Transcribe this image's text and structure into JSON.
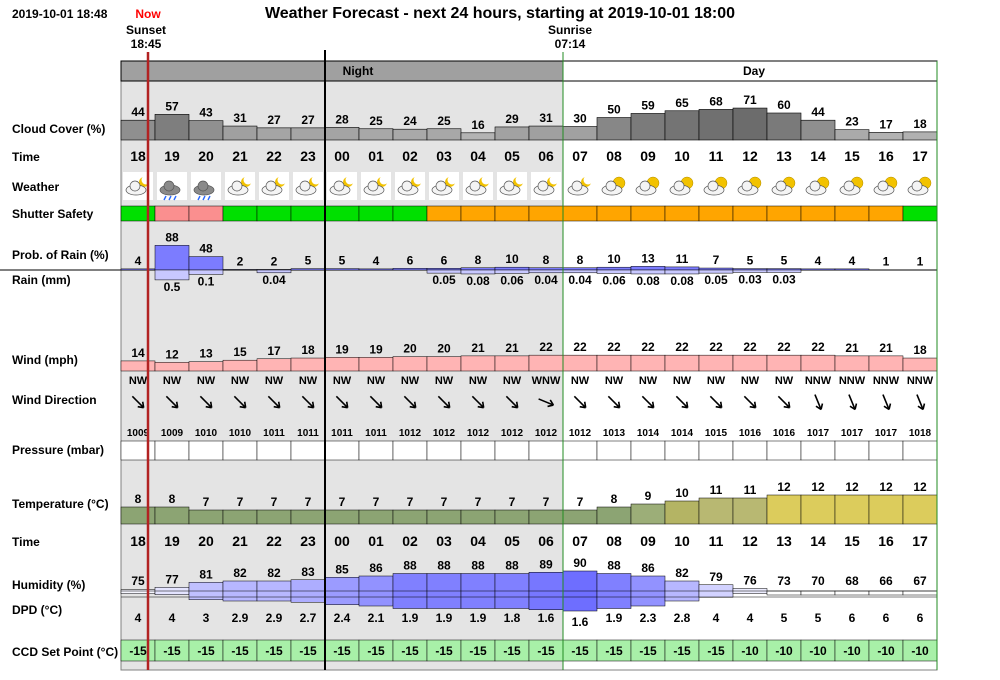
{
  "header": {
    "timestamp": "2019-10-01 18:48",
    "now_label": "Now",
    "title": "Weather Forecast - next 24 hours, starting at 2019-10-01 18:00",
    "sunset_label": "Sunset",
    "sunset_time": "18:45",
    "sunrise_label": "Sunrise",
    "sunrise_time": "07:14",
    "night_label": "Night",
    "day_label": "Day"
  },
  "colors": {
    "night_shade": "#e4e4e4",
    "now_line": "#b22222",
    "safe": "#00e000",
    "marginal": "#ffa500",
    "unsafe": "#fa8f8f",
    "rain_prob": "#7c7cff",
    "rain_mm": "#c8c8ff",
    "wind": "#ffb4b4",
    "set_point": "#a8f0a8",
    "sunrise_line": "#228b22"
  },
  "chart_data": {
    "type": "table",
    "row_labels": {
      "cloud": "Cloud Cover (%)",
      "time": "Time",
      "weather": "Weather",
      "shutter": "Shutter Safety",
      "rain_prob": "Prob. of Rain (%)",
      "rain_mm": "Rain (mm)",
      "wind": "Wind (mph)",
      "wind_dir": "Wind Direction",
      "pressure": "Pressure (mbar)",
      "temperature": "Temperature (°C)",
      "time2": "Time",
      "humidity": "Humidity (%)",
      "dpd": "DPD (°C)",
      "set_point": "CCD Set Point (°C)"
    },
    "hours": [
      "18",
      "19",
      "20",
      "21",
      "22",
      "23",
      "00",
      "01",
      "02",
      "03",
      "04",
      "05",
      "06",
      "07",
      "08",
      "09",
      "10",
      "11",
      "12",
      "13",
      "14",
      "15",
      "16",
      "17"
    ],
    "cloud_cover": [
      44,
      57,
      43,
      31,
      27,
      27,
      28,
      25,
      24,
      25,
      16,
      29,
      31,
      30,
      50,
      59,
      65,
      68,
      71,
      60,
      44,
      23,
      17,
      18
    ],
    "weather_icons": [
      "partly-cloudy-night",
      "rain",
      "rain",
      "cloudy-night",
      "cloudy-night",
      "cloudy-night",
      "cloudy-night",
      "cloudy-night",
      "cloudy-night",
      "cloudy-night",
      "cloudy-night",
      "cloudy-night",
      "cloudy-night",
      "cloudy-night",
      "partly-cloudy-day",
      "partly-cloudy-day",
      "cloudy-day",
      "cloudy-day",
      "cloudy-day",
      "cloudy-day",
      "partly-cloudy-day",
      "partly-cloudy-day",
      "partly-cloudy-day",
      "partly-cloudy-day"
    ],
    "shutter_safety": [
      "safe",
      "unsafe",
      "unsafe",
      "safe",
      "safe",
      "safe",
      "safe",
      "safe",
      "safe",
      "marginal",
      "marginal",
      "marginal",
      "marginal",
      "marginal",
      "marginal",
      "marginal",
      "marginal",
      "marginal",
      "marginal",
      "marginal",
      "marginal",
      "marginal",
      "marginal",
      "safe"
    ],
    "rain_probability": [
      4,
      88,
      48,
      2,
      2,
      5,
      5,
      4,
      6,
      6,
      8,
      10,
      8,
      8,
      10,
      13,
      11,
      7,
      5,
      5,
      4,
      4,
      1,
      1
    ],
    "rain_mm": [
      "",
      "0.5",
      "0.1",
      "",
      "0.04",
      "",
      "",
      "",
      "",
      "0.05",
      "0.08",
      "0.06",
      "0.04",
      "0.04",
      "0.06",
      "0.08",
      "0.08",
      "0.05",
      "0.03",
      "0.03",
      "",
      "",
      "",
      ""
    ],
    "wind_mph": [
      14,
      12,
      13,
      15,
      17,
      18,
      19,
      19,
      20,
      20,
      21,
      21,
      22,
      22,
      22,
      22,
      22,
      22,
      22,
      22,
      22,
      21,
      21,
      18
    ],
    "wind_direction": [
      "NW",
      "NW",
      "NW",
      "NW",
      "NW",
      "NW",
      "NW",
      "NW",
      "NW",
      "NW",
      "NW",
      "NW",
      "WNW",
      "NW",
      "NW",
      "NW",
      "NW",
      "NW",
      "NW",
      "NW",
      "NNW",
      "NNW",
      "NNW",
      "NNW"
    ],
    "wind_bearing_deg": [
      315,
      315,
      315,
      315,
      315,
      315,
      315,
      315,
      315,
      315,
      315,
      315,
      292.5,
      315,
      315,
      315,
      315,
      315,
      315,
      315,
      337.5,
      337.5,
      337.5,
      337.5
    ],
    "pressure_mbar": [
      1009,
      1009,
      1010,
      1010,
      1011,
      1011,
      1011,
      1011,
      1012,
      1012,
      1012,
      1012,
      1012,
      1012,
      1013,
      1014,
      1014,
      1015,
      1016,
      1016,
      1017,
      1017,
      1017,
      1018
    ],
    "temperature_c": [
      8,
      8,
      7,
      7,
      7,
      7,
      7,
      7,
      7,
      7,
      7,
      7,
      7,
      7,
      8,
      9,
      10,
      11,
      11,
      12,
      12,
      12,
      12,
      12
    ],
    "humidity_pct": [
      75,
      77,
      81,
      82,
      82,
      83,
      85,
      86,
      88,
      88,
      88,
      88,
      89,
      90,
      88,
      86,
      82,
      79,
      76,
      73,
      70,
      68,
      66,
      67
    ],
    "dpd_c": [
      "4",
      "4",
      "3",
      "2.9",
      "2.9",
      "2.7",
      "2.4",
      "2.1",
      "1.9",
      "1.9",
      "1.9",
      "1.8",
      "1.6",
      "1.6",
      "1.9",
      "2.3",
      "2.8",
      "4",
      "4",
      "5",
      "5",
      "6",
      "6",
      "6"
    ],
    "ccd_set_point_c": [
      -15,
      -15,
      -15,
      -15,
      -15,
      -15,
      -15,
      -15,
      -15,
      -15,
      -15,
      -15,
      -15,
      -15,
      -15,
      -15,
      -15,
      -15,
      -10,
      -10,
      -10,
      -10,
      -10,
      -10
    ],
    "now_fraction_of_first_hour": 0.8,
    "sunset_fraction_of_first_hour": 0.75,
    "sunrise_fraction_of_hour_07": 0.23
  }
}
